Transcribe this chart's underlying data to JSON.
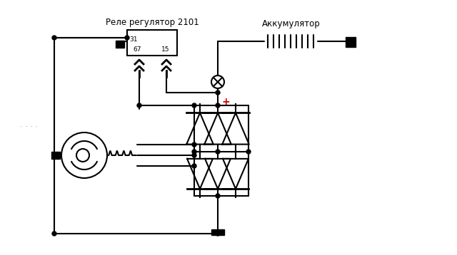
{
  "bg_color": "#ffffff",
  "line_color": "#000000",
  "text_relay": "Реле регулятор 2101",
  "text_battery": "Аккумулятор",
  "text_31": "31",
  "text_67": "67",
  "text_15": "15",
  "text_dots": ". . . .",
  "plus_color": "#cc0000",
  "fig_width": 6.4,
  "fig_height": 3.58,
  "dpi": 100
}
